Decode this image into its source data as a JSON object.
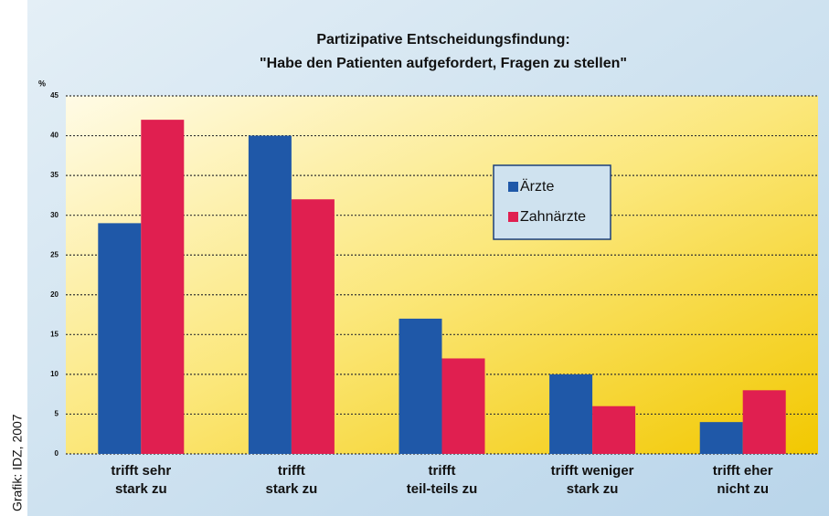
{
  "chart_data": {
    "type": "bar",
    "title": [
      "Partizipative Entscheidungsfindung:",
      "\"Habe den Patienten aufgefordert, Fragen zu stellen\""
    ],
    "y_axis_label": "%",
    "categories": [
      [
        "trifft sehr",
        "stark zu"
      ],
      [
        "trifft",
        "stark zu"
      ],
      [
        "trifft",
        "teil-teils zu"
      ],
      [
        "trifft weniger",
        "stark zu"
      ],
      [
        "trifft eher",
        "nicht zu"
      ]
    ],
    "series": [
      {
        "name": "Ärzte",
        "color": "#1f58a8",
        "values": [
          29,
          40,
          17,
          10,
          4
        ]
      },
      {
        "name": "Zahnärzte",
        "color": "#e01f50",
        "values": [
          42,
          32,
          12,
          6,
          8
        ]
      }
    ],
    "ylim": [
      0,
      45
    ],
    "yticks": [
      0,
      5,
      10,
      15,
      20,
      25,
      30,
      35,
      40,
      45
    ],
    "grid": true,
    "credit": "Grafik: IDZ, 2007"
  }
}
